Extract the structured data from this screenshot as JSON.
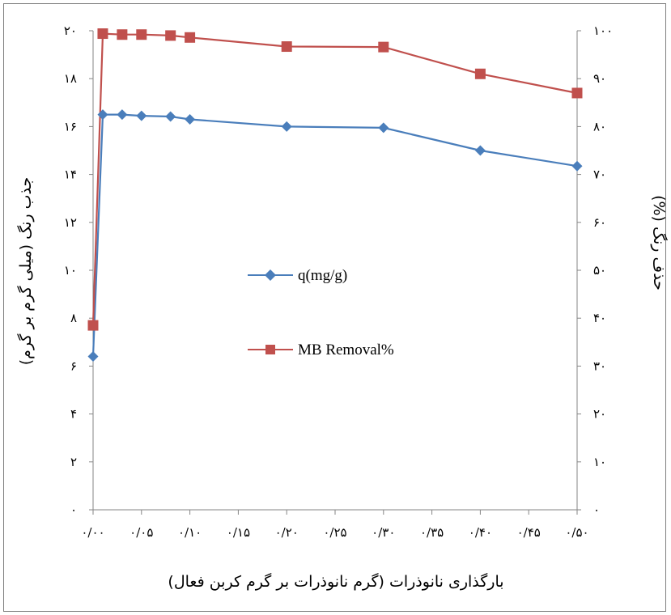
{
  "chart_data": {
    "type": "line",
    "title": "",
    "xlabel": "بارگذاری نانوذرات (گرم نانوذرات بر گرم کربن فعال)",
    "ylabel_left": "جذب رنگ (میلی گرم بر گرم)",
    "ylabel_right": "حذف رنگ (%)",
    "xlim": [
      0,
      0.5
    ],
    "ylim_left": [
      0,
      20
    ],
    "ylim_right": [
      0,
      100
    ],
    "x_ticks": [
      "۰/۰۰",
      "۰/۰۵",
      "۰/۱۰",
      "۰/۱۵",
      "۰/۲۰",
      "۰/۲۵",
      "۰/۳۰",
      "۰/۳۵",
      "۰/۴۰",
      "۰/۴۵",
      "۰/۵۰"
    ],
    "y_left_ticks": [
      "۰",
      "۲",
      "۴",
      "۶",
      "۸",
      "۱۰",
      "۱۲",
      "۱۴",
      "۱۶",
      "۱۸",
      "۲۰"
    ],
    "y_right_ticks": [
      "۰",
      "۱۰",
      "۲۰",
      "۳۰",
      "۴۰",
      "۵۰",
      "۶۰",
      "۷۰",
      "۸۰",
      "۹۰",
      "۱۰۰"
    ],
    "legend_position": "center",
    "grid": false,
    "series": [
      {
        "name": "q(mg/g)",
        "axis": "left",
        "color": "#4a7ebb",
        "marker": "diamond",
        "x": [
          0.0,
          0.01,
          0.03,
          0.05,
          0.08,
          0.1,
          0.2,
          0.3,
          0.4,
          0.5
        ],
        "values": [
          6.4,
          16.5,
          16.5,
          16.45,
          16.42,
          16.3,
          16.0,
          15.95,
          15.0,
          14.35
        ]
      },
      {
        "name": "MB Removal%",
        "axis": "right",
        "color": "#c0504d",
        "marker": "square",
        "x": [
          0.0,
          0.01,
          0.03,
          0.05,
          0.08,
          0.1,
          0.2,
          0.3,
          0.4,
          0.5
        ],
        "values": [
          38.5,
          99.4,
          99.2,
          99.2,
          99.0,
          98.6,
          96.7,
          96.6,
          91.0,
          87.0
        ]
      }
    ]
  }
}
